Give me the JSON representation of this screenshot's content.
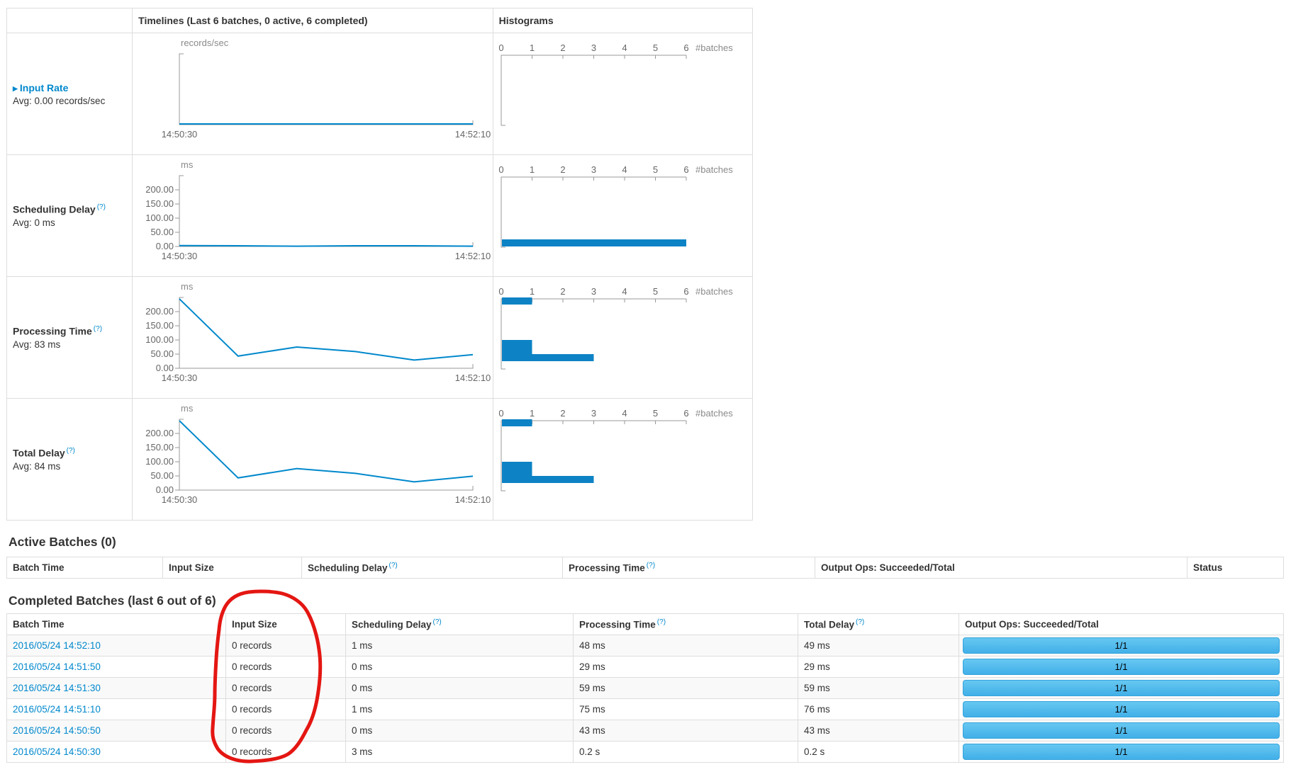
{
  "colors": {
    "accent_blue": "#0088cc",
    "line_blue": "#0088cc",
    "bar_blue": "#0d83c5",
    "axis_gray": "#999999",
    "annotation_red": "#e41612",
    "progress_gradient_top": "#67c8f1",
    "progress_gradient_bottom": "#41afe8",
    "progress_border": "#35a3dc"
  },
  "charts_table": {
    "header": {
      "timelines": "Timelines (Last 6 batches, 0 active, 6 completed)",
      "histograms": "Histograms"
    },
    "x_ticks": [
      "14:50:30",
      "14:52:10"
    ],
    "batches_axis_label": "#batches",
    "batches_ticks": [
      0,
      1,
      2,
      3,
      4,
      5,
      6
    ],
    "rows": [
      {
        "id": "input-rate",
        "label": "Input Rate",
        "expandable": true,
        "help": null,
        "avg": "Avg: 0.00 records/sec",
        "unit": "records/sec",
        "y_ticks": [],
        "values_ms": [
          0,
          0,
          0,
          0,
          0,
          0
        ],
        "hist_bars": []
      },
      {
        "id": "scheduling-delay",
        "label": "Scheduling Delay",
        "expandable": false,
        "help": "(?)",
        "avg": "Avg: 0 ms",
        "unit": "ms",
        "y_ticks": [
          "200.00",
          "150.00",
          "100.00",
          "50.00",
          "0.00"
        ],
        "values_ms": [
          3,
          0,
          1,
          0,
          0,
          1
        ],
        "hist_bars": [
          {
            "bin": [
              0,
              25
            ],
            "count": 6
          }
        ]
      },
      {
        "id": "processing-time",
        "label": "Processing Time",
        "expandable": false,
        "help": "(?)",
        "avg": "Avg: 83 ms",
        "unit": "ms",
        "y_ticks": [
          "200.00",
          "150.00",
          "100.00",
          "50.00",
          "0.00"
        ],
        "values_ms": [
          245,
          43,
          75,
          59,
          29,
          48
        ],
        "hist_bars": [
          {
            "bin": [
              225,
              250
            ],
            "count": 1
          },
          {
            "bin": [
              75,
              100
            ],
            "count": 1
          },
          {
            "bin": [
              50,
              75
            ],
            "count": 1
          },
          {
            "bin": [
              25,
              50
            ],
            "count": 3
          }
        ]
      },
      {
        "id": "total-delay",
        "label": "Total Delay",
        "expandable": false,
        "help": "(?)",
        "avg": "Avg: 84 ms",
        "unit": "ms",
        "y_ticks": [
          "200.00",
          "150.00",
          "100.00",
          "50.00",
          "0.00"
        ],
        "values_ms": [
          245,
          43,
          76,
          59,
          29,
          49
        ],
        "hist_bars": [
          {
            "bin": [
              225,
              250
            ],
            "count": 1
          },
          {
            "bin": [
              75,
              100
            ],
            "count": 1
          },
          {
            "bin": [
              50,
              75
            ],
            "count": 1
          },
          {
            "bin": [
              25,
              50
            ],
            "count": 3
          }
        ]
      }
    ]
  },
  "chart_data": [
    {
      "type": "line",
      "title": "Input Rate timeline",
      "x": [
        "14:50:30",
        "14:50:50",
        "14:51:10",
        "14:51:30",
        "14:51:50",
        "14:52:10"
      ],
      "values": [
        0,
        0,
        0,
        0,
        0,
        0
      ],
      "ylabel": "records/sec",
      "ylim": [
        0,
        250
      ],
      "legend": "none",
      "histogram": {
        "xlabel": "#batches",
        "xlim": [
          0,
          6
        ],
        "bins_ms": [],
        "counts": []
      }
    },
    {
      "type": "line",
      "title": "Scheduling Delay timeline",
      "x": [
        "14:50:30",
        "14:50:50",
        "14:51:10",
        "14:51:30",
        "14:51:50",
        "14:52:10"
      ],
      "values": [
        3,
        0,
        1,
        0,
        0,
        1
      ],
      "ylabel": "ms",
      "ylim": [
        0,
        250
      ],
      "yticks": [
        0,
        50,
        100,
        150,
        200
      ],
      "histogram": {
        "xlabel": "#batches",
        "xlim": [
          0,
          6
        ],
        "bins_ms": [
          [
            0,
            25
          ]
        ],
        "counts": [
          6
        ]
      }
    },
    {
      "type": "line",
      "title": "Processing Time timeline",
      "x": [
        "14:50:30",
        "14:50:50",
        "14:51:10",
        "14:51:30",
        "14:51:50",
        "14:52:10"
      ],
      "values": [
        245,
        43,
        75,
        59,
        29,
        48
      ],
      "ylabel": "ms",
      "ylim": [
        0,
        250
      ],
      "yticks": [
        0,
        50,
        100,
        150,
        200
      ],
      "histogram": {
        "xlabel": "#batches",
        "xlim": [
          0,
          6
        ],
        "bins_ms": [
          [
            25,
            50
          ],
          [
            50,
            75
          ],
          [
            75,
            100
          ],
          [
            225,
            250
          ]
        ],
        "counts": [
          3,
          1,
          1,
          1
        ]
      }
    },
    {
      "type": "line",
      "title": "Total Delay timeline",
      "x": [
        "14:50:30",
        "14:50:50",
        "14:51:10",
        "14:51:30",
        "14:51:50",
        "14:52:10"
      ],
      "values": [
        245,
        43,
        76,
        59,
        29,
        49
      ],
      "ylabel": "ms",
      "ylim": [
        0,
        250
      ],
      "yticks": [
        0,
        50,
        100,
        150,
        200
      ],
      "histogram": {
        "xlabel": "#batches",
        "xlim": [
          0,
          6
        ],
        "bins_ms": [
          [
            25,
            50
          ],
          [
            50,
            75
          ],
          [
            75,
            100
          ],
          [
            225,
            250
          ]
        ],
        "counts": [
          3,
          1,
          1,
          1
        ]
      }
    }
  ],
  "active_batches": {
    "title": "Active Batches (0)",
    "columns": [
      {
        "label": "Batch Time",
        "help": null
      },
      {
        "label": "Input Size",
        "help": null
      },
      {
        "label": "Scheduling Delay",
        "help": "(?)"
      },
      {
        "label": "Processing Time",
        "help": "(?)"
      },
      {
        "label": "Output Ops: Succeeded/Total",
        "help": null
      },
      {
        "label": "Status",
        "help": null
      }
    ],
    "rows": []
  },
  "completed_batches": {
    "title": "Completed Batches (last 6 out of 6)",
    "columns": [
      {
        "label": "Batch Time",
        "help": null
      },
      {
        "label": "Input Size",
        "help": null
      },
      {
        "label": "Scheduling Delay",
        "help": "(?)"
      },
      {
        "label": "Processing Time",
        "help": "(?)"
      },
      {
        "label": "Total Delay",
        "help": "(?)"
      },
      {
        "label": "Output Ops: Succeeded/Total",
        "help": null
      }
    ],
    "rows": [
      {
        "batch_time": "2016/05/24 14:52:10",
        "input_size": "0 records",
        "scheduling_delay": "1 ms",
        "processing_time": "48 ms",
        "total_delay": "49 ms",
        "output_ops": "1/1"
      },
      {
        "batch_time": "2016/05/24 14:51:50",
        "input_size": "0 records",
        "scheduling_delay": "0 ms",
        "processing_time": "29 ms",
        "total_delay": "29 ms",
        "output_ops": "1/1"
      },
      {
        "batch_time": "2016/05/24 14:51:30",
        "input_size": "0 records",
        "scheduling_delay": "0 ms",
        "processing_time": "59 ms",
        "total_delay": "59 ms",
        "output_ops": "1/1"
      },
      {
        "batch_time": "2016/05/24 14:51:10",
        "input_size": "0 records",
        "scheduling_delay": "1 ms",
        "processing_time": "75 ms",
        "total_delay": "76 ms",
        "output_ops": "1/1"
      },
      {
        "batch_time": "2016/05/24 14:50:50",
        "input_size": "0 records",
        "scheduling_delay": "0 ms",
        "processing_time": "43 ms",
        "total_delay": "43 ms",
        "output_ops": "1/1"
      },
      {
        "batch_time": "2016/05/24 14:50:30",
        "input_size": "0 records",
        "scheduling_delay": "3 ms",
        "processing_time": "0.2 s",
        "total_delay": "0.2 s",
        "output_ops": "1/1"
      }
    ]
  },
  "annotation": {
    "shape": "hand-drawn-ellipse",
    "target": "completed-batches-input-size-column",
    "color": "#e41612"
  }
}
